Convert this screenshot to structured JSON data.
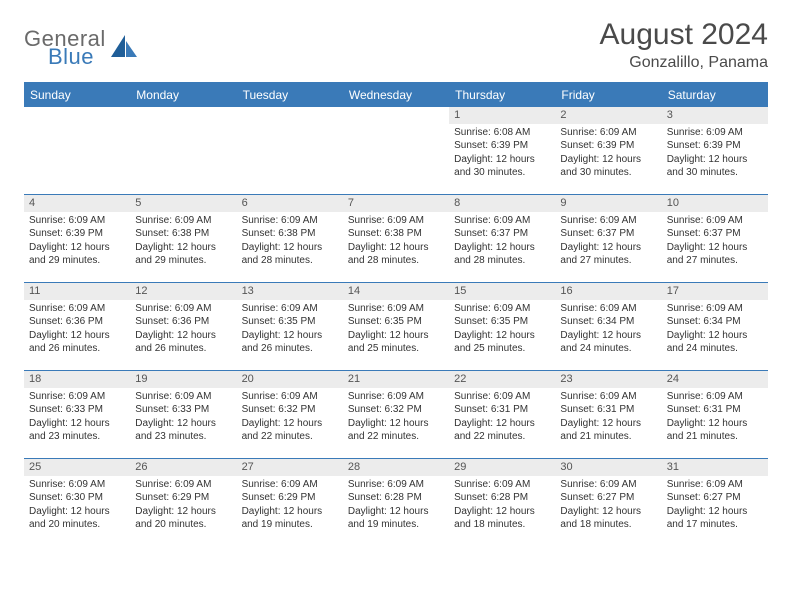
{
  "logo": {
    "text1": "General",
    "text2": "Blue"
  },
  "title": "August 2024",
  "location": "Gonzalillo, Panama",
  "colors": {
    "header_bg": "#3a7ab8",
    "header_text": "#ffffff",
    "daynum_bg": "#ececec",
    "border": "#3a7ab8",
    "body_text": "#333333",
    "logo_gray": "#6a6a6a",
    "logo_blue": "#3a7ab8"
  },
  "day_headers": [
    "Sunday",
    "Monday",
    "Tuesday",
    "Wednesday",
    "Thursday",
    "Friday",
    "Saturday"
  ],
  "leading_blanks": 4,
  "days": [
    {
      "n": 1,
      "sr": "6:08 AM",
      "ss": "6:39 PM",
      "dl": "12 hours and 30 minutes."
    },
    {
      "n": 2,
      "sr": "6:09 AM",
      "ss": "6:39 PM",
      "dl": "12 hours and 30 minutes."
    },
    {
      "n": 3,
      "sr": "6:09 AM",
      "ss": "6:39 PM",
      "dl": "12 hours and 30 minutes."
    },
    {
      "n": 4,
      "sr": "6:09 AM",
      "ss": "6:39 PM",
      "dl": "12 hours and 29 minutes."
    },
    {
      "n": 5,
      "sr": "6:09 AM",
      "ss": "6:38 PM",
      "dl": "12 hours and 29 minutes."
    },
    {
      "n": 6,
      "sr": "6:09 AM",
      "ss": "6:38 PM",
      "dl": "12 hours and 28 minutes."
    },
    {
      "n": 7,
      "sr": "6:09 AM",
      "ss": "6:38 PM",
      "dl": "12 hours and 28 minutes."
    },
    {
      "n": 8,
      "sr": "6:09 AM",
      "ss": "6:37 PM",
      "dl": "12 hours and 28 minutes."
    },
    {
      "n": 9,
      "sr": "6:09 AM",
      "ss": "6:37 PM",
      "dl": "12 hours and 27 minutes."
    },
    {
      "n": 10,
      "sr": "6:09 AM",
      "ss": "6:37 PM",
      "dl": "12 hours and 27 minutes."
    },
    {
      "n": 11,
      "sr": "6:09 AM",
      "ss": "6:36 PM",
      "dl": "12 hours and 26 minutes."
    },
    {
      "n": 12,
      "sr": "6:09 AM",
      "ss": "6:36 PM",
      "dl": "12 hours and 26 minutes."
    },
    {
      "n": 13,
      "sr": "6:09 AM",
      "ss": "6:35 PM",
      "dl": "12 hours and 26 minutes."
    },
    {
      "n": 14,
      "sr": "6:09 AM",
      "ss": "6:35 PM",
      "dl": "12 hours and 25 minutes."
    },
    {
      "n": 15,
      "sr": "6:09 AM",
      "ss": "6:35 PM",
      "dl": "12 hours and 25 minutes."
    },
    {
      "n": 16,
      "sr": "6:09 AM",
      "ss": "6:34 PM",
      "dl": "12 hours and 24 minutes."
    },
    {
      "n": 17,
      "sr": "6:09 AM",
      "ss": "6:34 PM",
      "dl": "12 hours and 24 minutes."
    },
    {
      "n": 18,
      "sr": "6:09 AM",
      "ss": "6:33 PM",
      "dl": "12 hours and 23 minutes."
    },
    {
      "n": 19,
      "sr": "6:09 AM",
      "ss": "6:33 PM",
      "dl": "12 hours and 23 minutes."
    },
    {
      "n": 20,
      "sr": "6:09 AM",
      "ss": "6:32 PM",
      "dl": "12 hours and 22 minutes."
    },
    {
      "n": 21,
      "sr": "6:09 AM",
      "ss": "6:32 PM",
      "dl": "12 hours and 22 minutes."
    },
    {
      "n": 22,
      "sr": "6:09 AM",
      "ss": "6:31 PM",
      "dl": "12 hours and 22 minutes."
    },
    {
      "n": 23,
      "sr": "6:09 AM",
      "ss": "6:31 PM",
      "dl": "12 hours and 21 minutes."
    },
    {
      "n": 24,
      "sr": "6:09 AM",
      "ss": "6:31 PM",
      "dl": "12 hours and 21 minutes."
    },
    {
      "n": 25,
      "sr": "6:09 AM",
      "ss": "6:30 PM",
      "dl": "12 hours and 20 minutes."
    },
    {
      "n": 26,
      "sr": "6:09 AM",
      "ss": "6:29 PM",
      "dl": "12 hours and 20 minutes."
    },
    {
      "n": 27,
      "sr": "6:09 AM",
      "ss": "6:29 PM",
      "dl": "12 hours and 19 minutes."
    },
    {
      "n": 28,
      "sr": "6:09 AM",
      "ss": "6:28 PM",
      "dl": "12 hours and 19 minutes."
    },
    {
      "n": 29,
      "sr": "6:09 AM",
      "ss": "6:28 PM",
      "dl": "12 hours and 18 minutes."
    },
    {
      "n": 30,
      "sr": "6:09 AM",
      "ss": "6:27 PM",
      "dl": "12 hours and 18 minutes."
    },
    {
      "n": 31,
      "sr": "6:09 AM",
      "ss": "6:27 PM",
      "dl": "12 hours and 17 minutes."
    }
  ],
  "labels": {
    "sunrise": "Sunrise:",
    "sunset": "Sunset:",
    "daylight": "Daylight:"
  }
}
